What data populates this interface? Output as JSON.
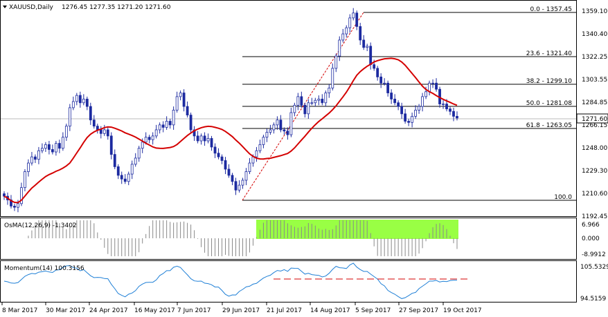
{
  "header": {
    "symbol": "XAUUSD,Daily",
    "ohlc": "1276.45 1277.35 1271.20 1271.60"
  },
  "price_axis": {
    "ticks": [
      "1359.10",
      "1340.40",
      "1322.25",
      "1303.55",
      "1284.85",
      "1266.15",
      "1248.00",
      "1229.30",
      "1210.60",
      "1192.45"
    ],
    "current_price": "1271.60"
  },
  "fibonacci": [
    {
      "label": "0.0 - 1357.45"
    },
    {
      "label": "23.6 - 1321.40"
    },
    {
      "label": "38.2 - 1299.10"
    },
    {
      "label": "50.0 - 1281.08"
    },
    {
      "label": "61.8 - 1263.05"
    },
    {
      "label": "100.0"
    }
  ],
  "osma": {
    "label": "OsMA(12,26,9) -1.3402",
    "ticks": [
      "6.966",
      "0.000",
      "-8.9912"
    ]
  },
  "momentum": {
    "label": "Momentum(14) 100.3156",
    "ticks": [
      "105.5329",
      "94.5159"
    ]
  },
  "dates": [
    "8 Mar 2017",
    "30 Mar 2017",
    "24 Apr 2017",
    "16 May 2017",
    "7 Jun 2017",
    "29 Jun 2017",
    "21 Jul 2017",
    "14 Aug 2017",
    "5 Sep 2017",
    "27 Sep 2017",
    "19 Oct 2017"
  ],
  "colors": {
    "candle": "#1c2aa0",
    "ma": "#d40000",
    "fib_line": "#000000",
    "trend_dash": "#d40000",
    "osma_highlight": "#99ff44",
    "momentum": "#1e7fd6"
  },
  "chart_data": {
    "type": "candlestick",
    "series": [
      {
        "name": "XAUUSD",
        "values": [
          1208,
          1205,
          1200,
          1199,
          1202,
          1215,
          1228,
          1235,
          1240,
          1238,
          1245,
          1247,
          1250,
          1246,
          1244,
          1251,
          1247,
          1256,
          1265,
          1280,
          1285,
          1290,
          1284,
          1287,
          1281,
          1270,
          1265,
          1262,
          1259,
          1262,
          1257,
          1242,
          1232,
          1225,
          1222,
          1220,
          1226,
          1234,
          1239,
          1247,
          1252,
          1256,
          1254,
          1257,
          1262,
          1266,
          1264,
          1269,
          1266,
          1278,
          1289,
          1292,
          1281,
          1274,
          1262,
          1257,
          1253,
          1257,
          1253,
          1255,
          1248,
          1243,
          1240,
          1237,
          1230,
          1225,
          1220,
          1213,
          1217,
          1221,
          1228,
          1235,
          1240,
          1245,
          1250,
          1256,
          1260,
          1262,
          1266,
          1270,
          1262,
          1261,
          1258,
          1276,
          1282,
          1289,
          1282,
          1275,
          1284,
          1284,
          1286,
          1287,
          1284,
          1292,
          1296,
          1312,
          1322,
          1335,
          1340,
          1345,
          1353,
          1357,
          1346,
          1335,
          1329,
          1330,
          1315,
          1312,
          1305,
          1300,
          1300,
          1292,
          1287,
          1284,
          1281,
          1275,
          1269,
          1268,
          1273,
          1278,
          1281,
          1289,
          1293,
          1300,
          1300,
          1295,
          1283,
          1283,
          1279,
          1277,
          1273,
          1271.6
        ]
      }
    ],
    "moving_average": "red line",
    "fibonacci_levels": [
      {
        "level": 0.0,
        "price": 1357.45
      },
      {
        "level": 23.6,
        "price": 1321.4
      },
      {
        "level": 38.2,
        "price": 1299.1
      },
      {
        "level": 50.0,
        "price": 1281.08
      },
      {
        "level": 61.8,
        "price": 1263.05
      },
      {
        "level": 100.0,
        "price": 1204.7
      }
    ],
    "ylim": [
      1192.45,
      1366
    ],
    "x_tick_labels": [
      "8 Mar 2017",
      "30 Mar 2017",
      "24 Apr 2017",
      "16 May 2017",
      "7 Jun 2017",
      "29 Jun 2017",
      "21 Jul 2017",
      "14 Aug 2017",
      "5 Sep 2017",
      "27 Sep 2017",
      "19 Oct 2017"
    ],
    "grid": false
  }
}
